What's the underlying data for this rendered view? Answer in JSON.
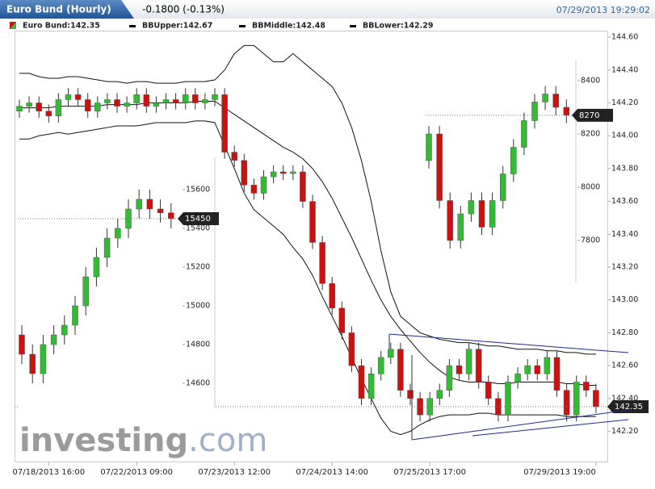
{
  "header": {
    "title": "Euro Bund (Hourly)",
    "change": "-0.1800 (-0.13%)",
    "timestamp": "07/29/2013 19:29:02"
  },
  "legend": [
    "Euro Bund:142.35",
    "BBUpper:142.67",
    "BBMiddle:142.48",
    "BBLower:142.29"
  ],
  "watermark": [
    "investing",
    ".com"
  ],
  "chart_data": [
    {
      "type": "candlestick",
      "up_color": "#33bb33",
      "down_color": "#cc1111",
      "ylim": [
        142.06,
        144.64
      ],
      "yticks": [
        {
          "value": 142.2,
          "label": "142.20"
        },
        {
          "value": 142.4,
          "label": "142.40"
        },
        {
          "value": 142.6,
          "label": "142.60"
        },
        {
          "value": 142.8,
          "label": "142.80"
        },
        {
          "value": 143,
          "label": "143.00"
        },
        {
          "value": 143.2,
          "label": "143.20"
        },
        {
          "value": 143.4,
          "label": "143.40"
        },
        {
          "value": 143.6,
          "label": "143.60"
        },
        {
          "value": 143.8,
          "label": "143.80"
        },
        {
          "value": 144,
          "label": "144.00"
        },
        {
          "value": 144.2,
          "label": "144.20"
        },
        {
          "value": 144.4,
          "label": "144.40"
        },
        {
          "value": 144.6,
          "label": "144.60"
        }
      ],
      "xticks": [
        {
          "value": 3,
          "label": "07/18/2013 16:00"
        },
        {
          "value": 12,
          "label": "07/22/2013 09:00"
        },
        {
          "value": 22,
          "label": "07/23/2013 12:00"
        },
        {
          "value": 32,
          "label": "07/24/2013 14:00"
        },
        {
          "value": 42,
          "label": "07/25/2013 17:00"
        },
        {
          "value": 59,
          "label": "07/29/2013 19:00"
        }
      ],
      "last_price": 142.35,
      "open": [
        144.15,
        144.18,
        144.2,
        144.15,
        144.12,
        144.22,
        144.25,
        144.22,
        144.15,
        144.2,
        144.22,
        144.18,
        144.2,
        144.25,
        144.18,
        144.2,
        144.22,
        144.2,
        144.25,
        144.2,
        144.22,
        144.25,
        143.9,
        143.85,
        143.7,
        143.65,
        143.75,
        143.78,
        143.77,
        143.78,
        143.6,
        143.35,
        143.1,
        142.95,
        142.8,
        142.6,
        142.4,
        142.55,
        142.65,
        142.7,
        142.45,
        142.4,
        142.3,
        142.4,
        142.45,
        142.6,
        142.55,
        142.7,
        142.5,
        142.4,
        142.3,
        142.5,
        142.55,
        142.6,
        142.55,
        142.65,
        142.45,
        142.3,
        142.5,
        142.45
      ],
      "high": [
        144.22,
        144.24,
        144.24,
        144.19,
        144.26,
        144.29,
        144.29,
        144.26,
        144.24,
        144.26,
        144.26,
        144.24,
        144.29,
        144.29,
        144.24,
        144.26,
        144.26,
        144.29,
        144.29,
        144.26,
        144.29,
        144.29,
        143.94,
        143.89,
        143.74,
        143.79,
        143.82,
        143.82,
        143.82,
        143.82,
        143.64,
        143.39,
        143.14,
        142.99,
        142.84,
        142.64,
        142.59,
        142.69,
        142.74,
        142.74,
        142.49,
        142.44,
        142.44,
        142.49,
        142.64,
        142.64,
        142.74,
        142.74,
        142.54,
        142.44,
        142.54,
        142.59,
        142.64,
        142.64,
        142.69,
        142.69,
        142.49,
        142.54,
        142.54,
        142.49
      ],
      "low": [
        144.11,
        144.14,
        144.11,
        144.08,
        144.08,
        144.18,
        144.18,
        144.11,
        144.11,
        144.16,
        144.14,
        144.14,
        144.16,
        144.14,
        144.14,
        144.16,
        144.16,
        144.16,
        144.16,
        144.16,
        144.18,
        143.86,
        143.81,
        143.66,
        143.61,
        143.61,
        143.71,
        143.73,
        143.73,
        143.56,
        143.31,
        143.06,
        142.91,
        142.76,
        142.56,
        142.36,
        142.36,
        142.51,
        142.61,
        142.41,
        142.36,
        142.26,
        142.26,
        142.36,
        142.41,
        142.51,
        142.51,
        142.46,
        142.36,
        142.26,
        142.26,
        142.46,
        142.51,
        142.51,
        142.51,
        142.41,
        142.26,
        142.26,
        142.41,
        142.31
      ],
      "close": [
        144.18,
        144.2,
        144.15,
        144.12,
        144.22,
        144.25,
        144.22,
        144.15,
        144.2,
        144.22,
        144.18,
        144.2,
        144.25,
        144.18,
        144.2,
        144.22,
        144.2,
        144.25,
        144.2,
        144.22,
        144.25,
        143.9,
        143.85,
        143.7,
        143.65,
        143.75,
        143.78,
        143.77,
        143.78,
        143.6,
        143.35,
        143.1,
        142.95,
        142.8,
        142.6,
        142.4,
        142.55,
        142.65,
        142.7,
        142.45,
        142.4,
        142.3,
        142.4,
        142.45,
        142.6,
        142.55,
        142.7,
        142.5,
        142.4,
        142.3,
        142.5,
        142.55,
        142.6,
        142.55,
        142.65,
        142.45,
        142.3,
        142.5,
        142.45,
        142.35
      ],
      "series": [
        {
          "name": "BBUpper",
          "color": "#111111",
          "values": [
            144.38,
            144.38,
            144.36,
            144.35,
            144.35,
            144.36,
            144.36,
            144.35,
            144.34,
            144.33,
            144.33,
            144.32,
            144.33,
            144.33,
            144.32,
            144.32,
            144.32,
            144.33,
            144.33,
            144.33,
            144.34,
            144.4,
            144.5,
            144.55,
            144.55,
            144.5,
            144.45,
            144.45,
            144.5,
            144.45,
            144.4,
            144.35,
            144.3,
            144.2,
            144.05,
            143.85,
            143.6,
            143.3,
            143.05,
            142.9,
            142.85,
            142.8,
            142.78,
            142.76,
            142.75,
            142.74,
            142.74,
            142.73,
            142.72,
            142.72,
            142.71,
            142.7,
            142.7,
            142.7,
            142.69,
            142.69,
            142.68,
            142.68,
            142.67,
            142.67
          ]
        },
        {
          "name": "BBMiddle",
          "color": "#111111",
          "values": [
            144.17,
            144.17,
            144.17,
            144.17,
            144.18,
            144.18,
            144.18,
            144.18,
            144.18,
            144.19,
            144.19,
            144.19,
            144.19,
            144.2,
            144.2,
            144.2,
            144.2,
            144.2,
            144.21,
            144.21,
            144.21,
            144.17,
            144.13,
            144.09,
            144.05,
            144.01,
            143.97,
            143.93,
            143.9,
            143.86,
            143.8,
            143.72,
            143.62,
            143.5,
            143.38,
            143.25,
            143.12,
            143,
            142.9,
            142.82,
            142.75,
            142.68,
            142.62,
            142.57,
            142.53,
            142.51,
            142.5,
            142.5,
            142.5,
            142.49,
            142.49,
            142.5,
            142.5,
            142.5,
            142.5,
            142.5,
            142.49,
            142.49,
            142.48,
            142.48
          ]
        },
        {
          "name": "BBLower",
          "color": "#111111",
          "values": [
            143.98,
            143.98,
            144,
            144.01,
            144.02,
            144.01,
            144.02,
            144.03,
            144.04,
            144.05,
            144.06,
            144.06,
            144.06,
            144.07,
            144.08,
            144.08,
            144.08,
            144.08,
            144.09,
            144.09,
            144.08,
            143.94,
            143.8,
            143.65,
            143.55,
            143.5,
            143.45,
            143.4,
            143.32,
            143.25,
            143.15,
            143.02,
            142.9,
            142.78,
            142.65,
            142.52,
            142.4,
            142.28,
            142.2,
            142.18,
            142.2,
            142.24,
            142.27,
            142.29,
            142.3,
            142.3,
            142.3,
            142.31,
            142.31,
            142.3,
            142.3,
            142.3,
            142.3,
            142.3,
            142.3,
            142.3,
            142.29,
            142.29,
            142.29,
            142.29
          ]
        }
      ]
    },
    {
      "type": "candlestick",
      "up_color": "#33bb33",
      "down_color": "#cc1111",
      "ylim": [
        14500,
        15700
      ],
      "yticks": [
        14600,
        14800,
        15000,
        15200,
        15400,
        15600
      ],
      "last_price": 15450,
      "open": [
        14850,
        14750,
        14650,
        14800,
        14850,
        14900,
        15000,
        15150,
        15250,
        15350,
        15400,
        15500,
        15550,
        15500,
        15480
      ],
      "high": [
        14900,
        14800,
        14850,
        14900,
        14950,
        15050,
        15200,
        15300,
        15400,
        15450,
        15550,
        15600,
        15600,
        15550,
        15530
      ],
      "low": [
        14700,
        14600,
        14600,
        14750,
        14800,
        14850,
        14950,
        15100,
        15200,
        15300,
        15350,
        15450,
        15450,
        15430,
        15400
      ],
      "close": [
        14750,
        14650,
        14800,
        14850,
        14900,
        15000,
        15150,
        15250,
        15350,
        15400,
        15500,
        15550,
        15500,
        15480,
        15450
      ]
    },
    {
      "type": "candlestick",
      "up_color": "#33bb33",
      "down_color": "#cc1111",
      "ylim": [
        7700,
        8450
      ],
      "yticks": [
        7800,
        8000,
        8200,
        8400
      ],
      "last_price": 8270,
      "open": [
        8100,
        8200,
        7950,
        7800,
        7900,
        7950,
        7850,
        7950,
        8050,
        8150,
        8250,
        8320,
        8350,
        8300
      ],
      "high": [
        8230,
        8230,
        7980,
        7930,
        7980,
        7980,
        7980,
        8080,
        8180,
        8280,
        8350,
        8380,
        8380,
        8330
      ],
      "low": [
        8070,
        7920,
        7770,
        7770,
        7870,
        7820,
        7820,
        7920,
        8020,
        8120,
        8220,
        8290,
        8270,
        8240
      ],
      "close": [
        8200,
        7950,
        7800,
        7900,
        7950,
        7850,
        7950,
        8050,
        8150,
        8250,
        8320,
        8350,
        8300,
        8270
      ]
    }
  ]
}
